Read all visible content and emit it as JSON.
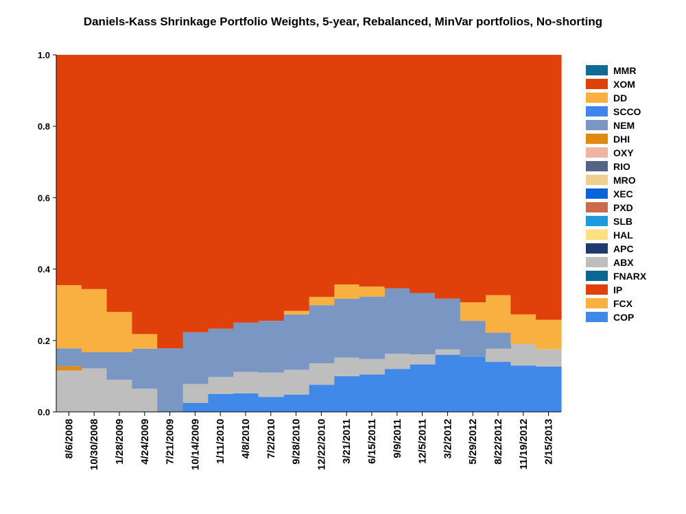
{
  "chart_data": {
    "type": "area",
    "title": "Daniels-Kass Shrinkage Portfolio Weights, 5-year, Rebalanced, MinVar portfolios, No-shorting",
    "xlabel": "",
    "ylabel": "",
    "ylim": [
      0,
      1
    ],
    "yticks": [
      "0.0",
      "0.2",
      "0.4",
      "0.6",
      "0.8",
      "1.0"
    ],
    "grid": false,
    "legend_position": "right",
    "x": [
      "8/6/2008",
      "10/30/2008",
      "1/28/2009",
      "4/24/2009",
      "7/21/2009",
      "10/14/2009",
      "1/11/2010",
      "4/8/2010",
      "7/2/2010",
      "9/28/2010",
      "12/22/2010",
      "3/21/2011",
      "6/15/2011",
      "9/9/2011",
      "12/5/2011",
      "3/2/2012",
      "5/29/2012",
      "8/22/2012",
      "11/19/2012",
      "2/15/2013"
    ],
    "legend": [
      "MMR",
      "XOM",
      "DD",
      "SCCO",
      "NEM",
      "DHI",
      "OXY",
      "RIO",
      "MRO",
      "XEC",
      "PXD",
      "SLB",
      "HAL",
      "APC",
      "ABX",
      "FNARX",
      "IP",
      "FCX",
      "COP"
    ],
    "series": [
      {
        "name": "COP",
        "color": "#4189E8",
        "values": [
          0,
          0,
          0,
          0,
          0,
          0.025,
          0.05,
          0.052,
          0.042,
          0.048,
          0.076,
          0.1,
          0.105,
          0.12,
          0.133,
          0.16,
          0.155,
          0.14,
          0.13,
          0.127
        ]
      },
      {
        "name": "FCX",
        "color": "#F8B040",
        "values": [
          0,
          0,
          0,
          0,
          0,
          0,
          0,
          0,
          0,
          0,
          0,
          0,
          0,
          0,
          0,
          0,
          0,
          0,
          0,
          0
        ]
      },
      {
        "name": "IP",
        "color": "#E0400A",
        "values": [
          0,
          0,
          0,
          0,
          0,
          0,
          0,
          0,
          0,
          0,
          0,
          0,
          0,
          0,
          0,
          0,
          0,
          0,
          0,
          0
        ]
      },
      {
        "name": "FNARX",
        "color": "#0A6890",
        "values": [
          0,
          0,
          0,
          0,
          0,
          0,
          0,
          0,
          0,
          0,
          0,
          0,
          0,
          0,
          0,
          0,
          0,
          0,
          0,
          0
        ]
      },
      {
        "name": "ABX",
        "color": "#BEBEBE",
        "values": [
          0.116,
          0.122,
          0.09,
          0.065,
          0,
          0.053,
          0.048,
          0.06,
          0.068,
          0.07,
          0.06,
          0.052,
          0.043,
          0.043,
          0.028,
          0.015,
          0,
          0.037,
          0.06,
          0.048
        ]
      },
      {
        "name": "APC",
        "color": "#1E3A6E",
        "values": [
          0,
          0,
          0,
          0,
          0,
          0,
          0,
          0,
          0,
          0,
          0,
          0,
          0,
          0,
          0,
          0,
          0,
          0,
          0,
          0
        ]
      },
      {
        "name": "HAL",
        "color": "#FFE080",
        "values": [
          0,
          0,
          0,
          0,
          0,
          0,
          0,
          0,
          0,
          0,
          0,
          0,
          0,
          0,
          0,
          0,
          0,
          0,
          0,
          0
        ]
      },
      {
        "name": "SLB",
        "color": "#1E9BE0",
        "values": [
          0,
          0,
          0,
          0,
          0,
          0,
          0,
          0,
          0,
          0,
          0,
          0,
          0,
          0,
          0,
          0,
          0,
          0,
          0,
          0
        ]
      },
      {
        "name": "PXD",
        "color": "#CC6A50",
        "values": [
          0,
          0,
          0,
          0,
          0,
          0,
          0,
          0,
          0,
          0,
          0,
          0,
          0,
          0,
          0,
          0,
          0,
          0,
          0,
          0
        ]
      },
      {
        "name": "XEC",
        "color": "#0A64D8",
        "values": [
          0,
          0,
          0,
          0,
          0,
          0,
          0,
          0,
          0,
          0,
          0,
          0,
          0,
          0,
          0,
          0,
          0,
          0,
          0,
          0
        ]
      },
      {
        "name": "MRO",
        "color": "#F0D090",
        "values": [
          0,
          0,
          0,
          0,
          0,
          0,
          0,
          0,
          0,
          0,
          0,
          0,
          0,
          0,
          0,
          0,
          0,
          0,
          0,
          0
        ]
      },
      {
        "name": "RIO",
        "color": "#536484",
        "values": [
          0,
          0,
          0,
          0,
          0,
          0,
          0,
          0,
          0,
          0,
          0,
          0,
          0,
          0,
          0,
          0,
          0,
          0,
          0,
          0
        ]
      },
      {
        "name": "OXY",
        "color": "#F0B4A4",
        "values": [
          0,
          0,
          0,
          0,
          0,
          0,
          0,
          0,
          0,
          0,
          0,
          0,
          0,
          0,
          0,
          0,
          0,
          0,
          0,
          0
        ]
      },
      {
        "name": "DHI",
        "color": "#E08A14",
        "values": [
          0.012,
          0,
          0,
          0,
          0,
          0,
          0,
          0,
          0,
          0,
          0,
          0,
          0,
          0,
          0,
          0,
          0,
          0,
          0,
          0
        ]
      },
      {
        "name": "NEM",
        "color": "#7A96C2",
        "values": [
          0.05,
          0.045,
          0.077,
          0.112,
          0.178,
          0.145,
          0.135,
          0.138,
          0.145,
          0.155,
          0.163,
          0.165,
          0.175,
          0.183,
          0.172,
          0.142,
          0.1,
          0.045,
          0,
          0
        ]
      },
      {
        "name": "SCCO",
        "color": "#3E86EE",
        "values": [
          0,
          0,
          0,
          0,
          0,
          0,
          0,
          0,
          0,
          0,
          0,
          0,
          0,
          0,
          0,
          0,
          0,
          0,
          0,
          0
        ]
      },
      {
        "name": "DD",
        "color": "#F8B040",
        "values": [
          0.177,
          0.177,
          0.113,
          0.041,
          0,
          0,
          0,
          0,
          0,
          0.01,
          0.023,
          0.04,
          0.028,
          0,
          0,
          0,
          0.052,
          0.105,
          0.083,
          0.083
        ]
      },
      {
        "name": "XOM",
        "color": "#E0400A",
        "values": [
          0.645,
          0.656,
          0.72,
          0.782,
          0.822,
          0.777,
          0.767,
          0.75,
          0.745,
          0.717,
          0.678,
          0.643,
          0.649,
          0.654,
          0.667,
          0.683,
          0.693,
          0.673,
          0.727,
          0.742
        ]
      },
      {
        "name": "MMR",
        "color": "#106A96",
        "values": [
          0,
          0,
          0,
          0,
          0,
          0,
          0,
          0,
          0,
          0,
          0,
          0,
          0,
          0,
          0,
          0,
          0,
          0,
          0,
          0
        ]
      }
    ]
  }
}
